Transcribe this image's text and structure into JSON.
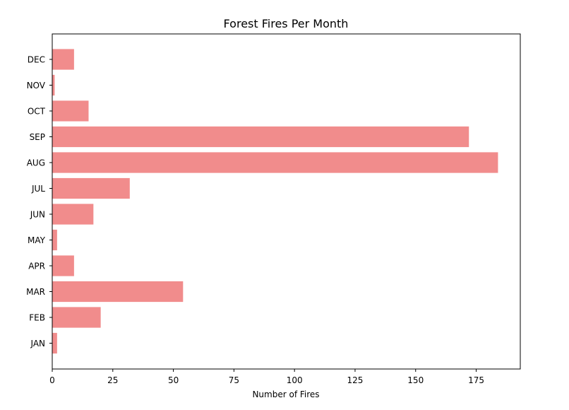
{
  "chart_data": {
    "type": "bar",
    "orientation": "horizontal",
    "title": "Forest Fires Per Month",
    "xlabel": "Number of Fires",
    "ylabel": "",
    "categories": [
      "JAN",
      "FEB",
      "MAR",
      "APR",
      "MAY",
      "JUN",
      "JUL",
      "AUG",
      "SEP",
      "OCT",
      "NOV",
      "DEC"
    ],
    "values": [
      2,
      20,
      54,
      9,
      2,
      17,
      32,
      184,
      172,
      15,
      1,
      9
    ],
    "xlim": [
      0,
      193.2
    ],
    "xticks": [
      0,
      25,
      50,
      75,
      100,
      125,
      150,
      175
    ],
    "grid": false,
    "legend": "none",
    "bar_color": "#F08080",
    "bar_opacity": 0.9
  }
}
